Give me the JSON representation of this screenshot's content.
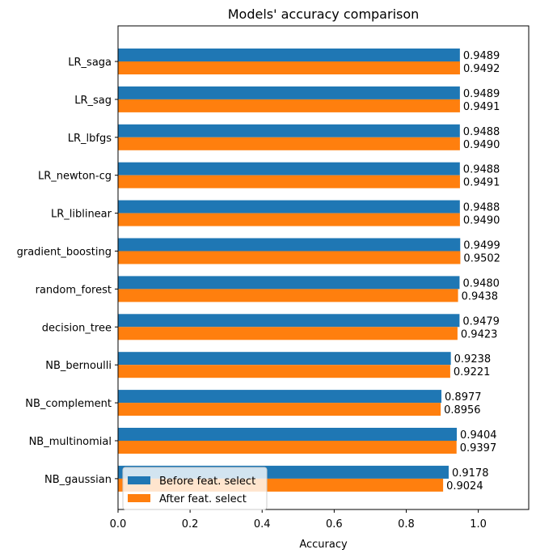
{
  "chart_data": {
    "type": "bar",
    "orientation": "horizontal",
    "title": "Models' accuracy comparison",
    "xlabel": "Accuracy",
    "ylabel": "",
    "xlim": [
      0,
      1.14
    ],
    "xticks": [
      "0.0",
      "0.2",
      "0.4",
      "0.6",
      "0.8",
      "1.0"
    ],
    "categories": [
      "LR_saga",
      "LR_sag",
      "LR_lbfgs",
      "LR_newton-cg",
      "LR_liblinear",
      "gradient_boosting",
      "random_forest",
      "decision_tree",
      "NB_bernoulli",
      "NB_complement",
      "NB_multinomial",
      "NB_gaussian"
    ],
    "series": [
      {
        "name": "Before feat. select",
        "color": "#1f77b4",
        "values": [
          0.9489,
          0.9489,
          0.9488,
          0.9488,
          0.9488,
          0.9499,
          0.948,
          0.9479,
          0.9238,
          0.8977,
          0.9404,
          0.9178
        ],
        "labels": [
          "0.9489",
          "0.9489",
          "0.9488",
          "0.9488",
          "0.9488",
          "0.9499",
          "0.9480",
          "0.9479",
          "0.9238",
          "0.8977",
          "0.9404",
          "0.9178"
        ]
      },
      {
        "name": "After feat. select",
        "color": "#ff7f0e",
        "values": [
          0.9492,
          0.9491,
          0.949,
          0.9491,
          0.949,
          0.9502,
          0.9438,
          0.9423,
          0.9221,
          0.8956,
          0.9397,
          0.9024
        ],
        "labels": [
          "0.9492",
          "0.9491",
          "0.9490",
          "0.9491",
          "0.9490",
          "0.9502",
          "0.9438",
          "0.9423",
          "0.9221",
          "0.8956",
          "0.9397",
          "0.9024"
        ]
      }
    ],
    "legend": "lower-left",
    "grid": false
  }
}
